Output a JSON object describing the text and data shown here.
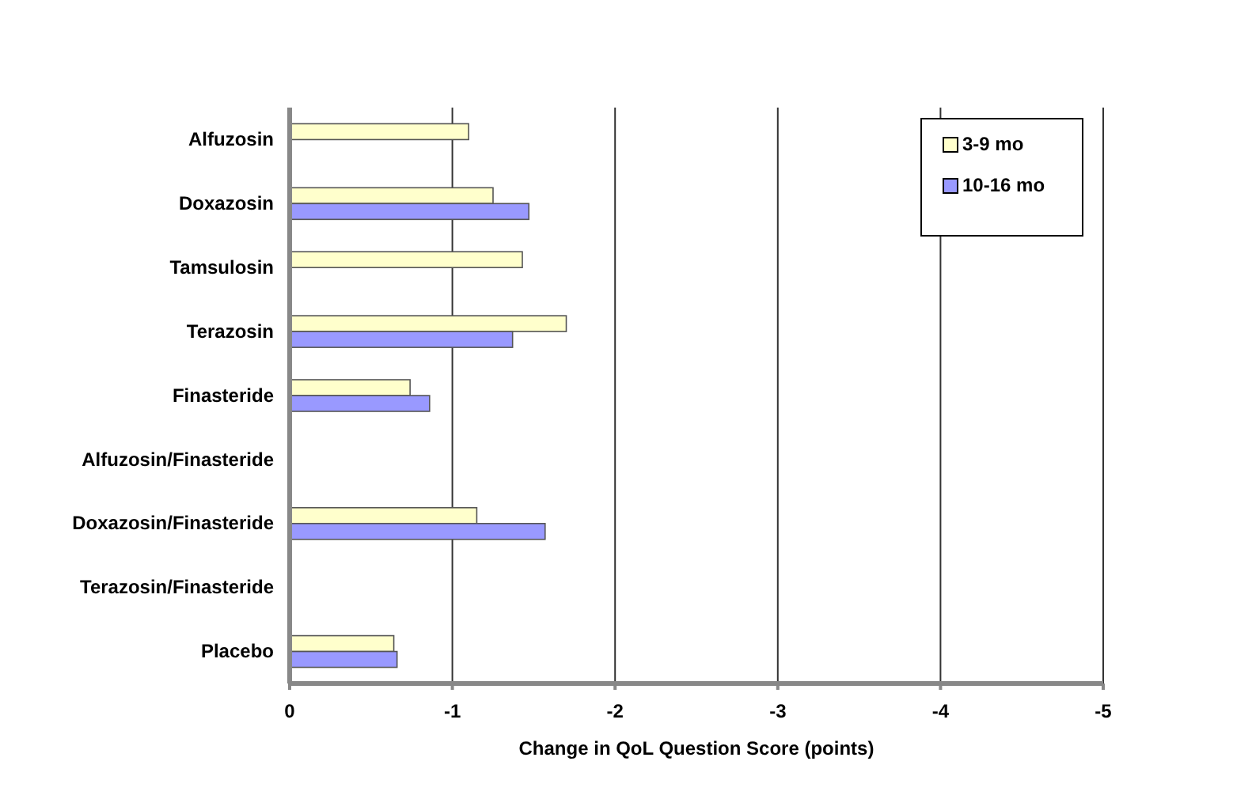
{
  "chart_data": {
    "type": "bar",
    "orientation": "horizontal",
    "xlabel": "Change in QoL Question Score (points)",
    "categories": [
      "Alfuzosin",
      "Doxazosin",
      "Tamsulosin",
      "Terazosin",
      "Finasteride",
      "Alfuzosin/Finasteride",
      "Doxazosin/Finasteride",
      "Terazosin/Finasteride",
      "Placebo"
    ],
    "series": [
      {
        "name": "3-9 mo",
        "color": "#ffffcc",
        "values": [
          -1.1,
          -1.25,
          -1.43,
          -1.7,
          -0.74,
          null,
          -1.15,
          null,
          -0.64
        ]
      },
      {
        "name": "10-16 mo",
        "color": "#9999ff",
        "values": [
          null,
          -1.47,
          null,
          -1.37,
          -0.86,
          null,
          -1.57,
          null,
          -0.66
        ]
      }
    ],
    "xlim": [
      0,
      -5
    ],
    "xticks": [
      0,
      -1,
      -2,
      -3,
      -4,
      -5
    ],
    "grid": "x",
    "legend": "top right"
  }
}
